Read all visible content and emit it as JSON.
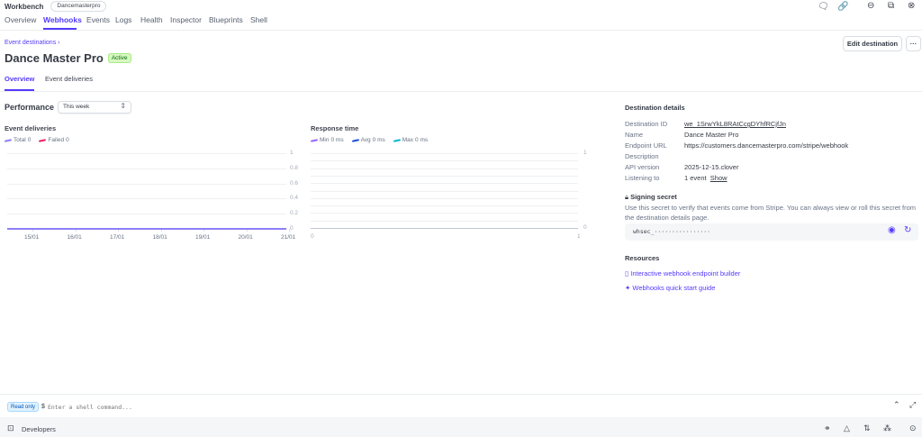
{
  "header": {
    "app_title": "Workbench",
    "account_badge": "Dancemasterpro",
    "tabs": [
      {
        "label": "Overview"
      },
      {
        "label": "Webhooks",
        "active": true
      },
      {
        "label": "Events"
      },
      {
        "label": "Logs"
      },
      {
        "label": "Health"
      },
      {
        "label": "Inspector"
      },
      {
        "label": "Blueprints"
      },
      {
        "label": "Shell"
      }
    ],
    "icons": [
      "feedback-icon",
      "link-icon",
      "minimize-icon",
      "expand-icon",
      "close-icon"
    ]
  },
  "page": {
    "breadcrumb": "Event destinations",
    "breadcrumb_chevron": "›",
    "title": "Dance Master Pro",
    "status": "Active",
    "edit_button": "Edit destination",
    "more_button": "···",
    "subtabs": [
      {
        "label": "Overview",
        "active": true
      },
      {
        "label": "Event deliveries"
      }
    ]
  },
  "performance": {
    "title": "Performance",
    "range": "This week"
  },
  "chart_data": [
    {
      "type": "line",
      "title": "Event deliveries",
      "categories": [
        "15/01",
        "16/01",
        "17/01",
        "18/01",
        "19/01",
        "20/01",
        "21/01"
      ],
      "series": [
        {
          "name": "Total",
          "total": "0",
          "color": "#8d7ffa",
          "values": [
            0,
            0,
            0,
            0,
            0,
            0,
            0
          ]
        },
        {
          "name": "Failed",
          "total": "0",
          "color": "#ea2261",
          "values": [
            0,
            0,
            0,
            0,
            0,
            0,
            0
          ]
        }
      ],
      "ylim": [
        0,
        1
      ],
      "yticks": [
        "1",
        "0.8",
        "0.6",
        "0.4",
        "0.2",
        "0"
      ],
      "grid": true,
      "legend": "top-left"
    },
    {
      "type": "line",
      "title": "Response time",
      "x_ticks": [
        "0",
        "1"
      ],
      "series": [
        {
          "name": "Min",
          "total": "0 ms",
          "color": "#9966ff"
        },
        {
          "name": "Avg",
          "total": "0 ms",
          "color": "#1d4ed8"
        },
        {
          "name": "Max",
          "total": "0 ms",
          "color": "#06b6d4"
        }
      ],
      "ylim": [
        0,
        1
      ],
      "yticks": [
        "1",
        "0"
      ],
      "grid": true,
      "legend": "top-left"
    }
  ],
  "details": {
    "title": "Destination details",
    "rows": [
      {
        "label": "Destination ID",
        "value": "we_1SrwYkL8RAtCcgDYhfRCjfJn"
      },
      {
        "label": "Name",
        "value": "Dance Master Pro"
      },
      {
        "label": "Endpoint URL",
        "value": "https://customers.dancemasterpro.com/stripe/webhook"
      },
      {
        "label": "Description",
        "value": ""
      },
      {
        "label": "API version",
        "value": "2025-12-15.clover"
      },
      {
        "label": "Listening to",
        "value": "1 event",
        "link": "Show"
      }
    ],
    "signing_title": "Signing secret",
    "signing_desc_1": "Use this secret to verify that events come from Stripe. You can always view or roll this secret from",
    "signing_desc_2": "the destination details page.",
    "secret": "whsec_················"
  },
  "resources": {
    "title": "Resources",
    "links": [
      "Interactive webhook endpoint builder",
      "Webhooks quick start guide"
    ]
  },
  "shell": {
    "badge": "Read only",
    "prompt": "$",
    "placeholder": "Enter a shell command..."
  },
  "footer": {
    "label": "Developers"
  },
  "colors": {
    "accent": "#533afd",
    "active_badge_bg": "#d7f7c2",
    "active_badge_text": "#05690d"
  }
}
